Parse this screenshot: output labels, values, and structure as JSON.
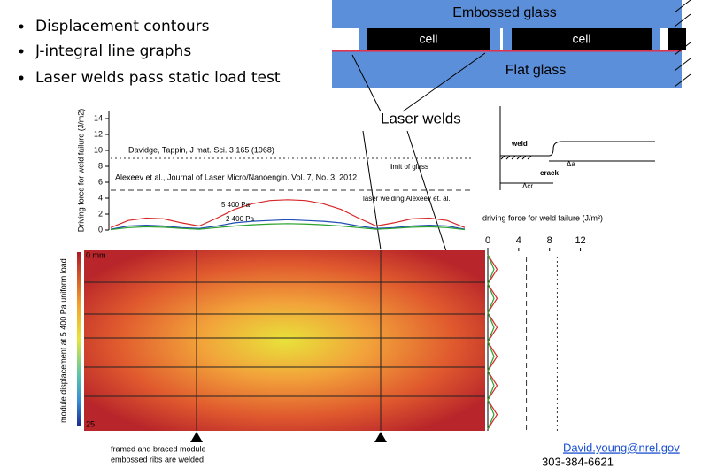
{
  "bullets": [
    "Displacement contours",
    "J-integral line graphs",
    "Laser welds pass static load test"
  ],
  "diagram": {
    "embossed": "Embossed glass",
    "cells": [
      "cell",
      "cell"
    ],
    "flat": "Flat glass",
    "welds_label": "Laser welds"
  },
  "sketch": {
    "weld": "weld",
    "crack": "crack",
    "da": "Δa",
    "acr": "Δcr"
  },
  "contour": {
    "ylabel": "module displacement at 5 400 Pa uniform load",
    "scale_top": "0 mm",
    "scale_bottom": "25",
    "caption": [
      "framed and braced module",
      "embossed ribs are welded"
    ]
  },
  "contact": {
    "email": "David.young@nrel.gov",
    "phone": "303-384-6621"
  },
  "chart_data": [
    {
      "type": "line",
      "ylabel": "Driving force for weld failure (J/m2)",
      "ylim": [
        0,
        15
      ],
      "yticks": [
        0,
        2,
        4,
        6,
        8,
        10,
        12,
        14
      ],
      "ref_lines": [
        {
          "value": 9,
          "label": "limit of glass",
          "source": "Davidge, Tappin, J mat. Sci. 3 165 (1968)",
          "style": "dotted"
        },
        {
          "value": 5,
          "label": "laser welding Alexeev et. al.",
          "source": "Alexeev et al., Journal of Laser Micro/Nanoengin. Vol. 7, No. 3, 2012",
          "style": "dashed"
        }
      ],
      "series": [
        {
          "name": "5 400 Pa",
          "color": "#d62728",
          "values": [
            0.3,
            1.2,
            1.5,
            1.4,
            0.9,
            0.5,
            1.5,
            2.6,
            3.3,
            3.7,
            3.8,
            3.7,
            3.3,
            2.6,
            1.5,
            0.5,
            0.9,
            1.4,
            1.5,
            1.2,
            0.3
          ]
        },
        {
          "name": "2 400 Pa",
          "color": "#1f4fb4",
          "values": [
            0.1,
            0.5,
            0.6,
            0.5,
            0.3,
            0.2,
            0.5,
            0.9,
            1.1,
            1.2,
            1.3,
            1.2,
            1.1,
            0.9,
            0.5,
            0.2,
            0.3,
            0.5,
            0.6,
            0.5,
            0.1
          ]
        },
        {
          "color": "#2ca02c",
          "values": [
            0.05,
            0.3,
            0.4,
            0.35,
            0.2,
            0.1,
            0.3,
            0.5,
            0.65,
            0.75,
            0.8,
            0.75,
            0.65,
            0.5,
            0.3,
            0.1,
            0.2,
            0.35,
            0.4,
            0.3,
            0.05
          ]
        }
      ]
    },
    {
      "type": "line",
      "orientation": "vertical",
      "xlabel": "driving force for weld failure (J/m²)",
      "xlim": [
        0,
        14
      ],
      "xticks": [
        0,
        4,
        8,
        12
      ],
      "ref_lines": [
        {
          "value": 5,
          "style": "dashed"
        },
        {
          "value": 9,
          "style": "dotted"
        }
      ],
      "series": [
        {
          "color": "#d62728",
          "values": [
            0,
            0.6,
            1.2,
            0.6,
            0,
            0.6,
            1.2,
            0.6,
            0,
            0.6,
            1.2,
            0.6,
            0,
            0.6,
            1.2,
            0.6,
            0,
            0.6,
            1.2,
            0.6,
            0,
            0.6,
            1.2,
            0.6,
            0
          ]
        },
        {
          "color": "#2ca02c",
          "values": [
            0,
            0.4,
            0.8,
            0.4,
            0,
            0.4,
            0.8,
            0.4,
            0,
            0.4,
            0.8,
            0.4,
            0,
            0.4,
            0.8,
            0.4,
            0,
            0.4,
            0.8,
            0.4,
            0,
            0.4,
            0.8,
            0.4,
            0
          ]
        }
      ]
    }
  ]
}
